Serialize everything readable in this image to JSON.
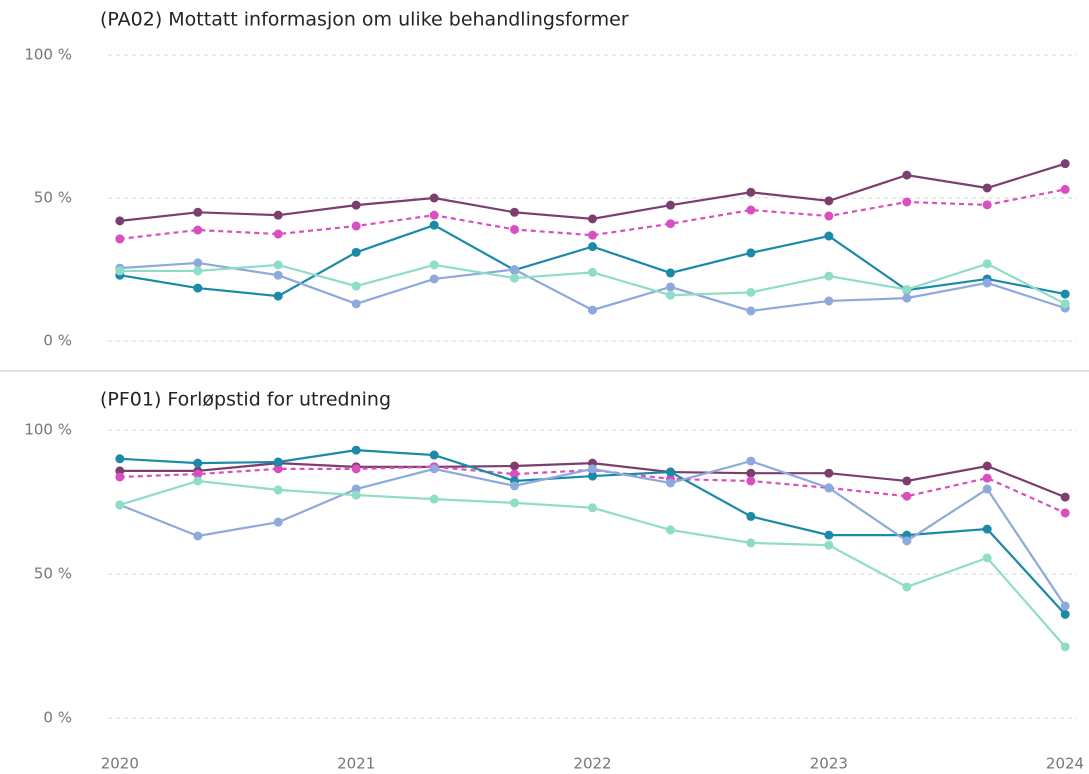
{
  "chart_data": [
    {
      "type": "line",
      "title": "(PA02) Mottatt informasjon om ulike behandlingsformer",
      "x": [
        2020,
        2020.33,
        2020.67,
        2021,
        2021.33,
        2021.67,
        2022,
        2022.33,
        2022.67,
        2023,
        2023.33,
        2023.67,
        2024
      ],
      "xlim": [
        2019.95,
        2024.05
      ],
      "ylim": [
        0,
        100
      ],
      "yticks": [
        {
          "value": 0,
          "label": "0 %"
        },
        {
          "value": 50,
          "label": "50 %"
        },
        {
          "value": 100,
          "label": "100 %"
        }
      ],
      "grid": true,
      "series": [
        {
          "color": "#7b3f6e",
          "line_style": "solid",
          "values": [
            42,
            45,
            44,
            47.5,
            50,
            45,
            42.7,
            47.5,
            52,
            49,
            58,
            53.5,
            62
          ]
        },
        {
          "color": "#d94fbf",
          "line_style": "dashed",
          "values": [
            35.7,
            38.8,
            37.4,
            40.2,
            44,
            39,
            37,
            41,
            45.8,
            43.7,
            48.6,
            47.6,
            53
          ]
        },
        {
          "color": "#1a8aa8",
          "line_style": "solid",
          "values": [
            23,
            18.5,
            15.7,
            31,
            40.5,
            24.8,
            33,
            23.8,
            30.8,
            36.7,
            17.8,
            21.7,
            16.4
          ]
        },
        {
          "color": "#8ea9dc",
          "line_style": "solid",
          "values": [
            25.5,
            27.3,
            23,
            13,
            21.7,
            25,
            10.8,
            18.9,
            10.5,
            14,
            15,
            20.3,
            11.5
          ]
        },
        {
          "color": "#8fdcc8",
          "line_style": "solid",
          "values": [
            24.5,
            24.5,
            26.6,
            19.2,
            26.6,
            22,
            24,
            16,
            17,
            22.7,
            18,
            27,
            13
          ]
        }
      ]
    },
    {
      "type": "line",
      "title": "(PF01) Forløpstid for utredning",
      "x": [
        2020,
        2020.33,
        2020.67,
        2021,
        2021.33,
        2021.67,
        2022,
        2022.33,
        2022.67,
        2023,
        2023.33,
        2023.67,
        2024
      ],
      "xlim": [
        2019.95,
        2024.05
      ],
      "xticks": [
        2020,
        2021,
        2022,
        2023,
        2024
      ],
      "ylim": [
        0,
        100
      ],
      "yticks": [
        {
          "value": 0,
          "label": "0 %"
        },
        {
          "value": 50,
          "label": "50 %"
        },
        {
          "value": 100,
          "label": "100 %"
        }
      ],
      "grid": true,
      "series": [
        {
          "color": "#7b3f6e",
          "line_style": "solid",
          "values": [
            85.8,
            85.8,
            88.5,
            87.2,
            87.2,
            87.5,
            88.5,
            85.4,
            85,
            85,
            82.3,
            87.5,
            76.7
          ]
        },
        {
          "color": "#d94fbf",
          "line_style": "dashed",
          "values": [
            83.7,
            84.7,
            86.5,
            86.5,
            87.2,
            84.7,
            86.1,
            83,
            82.3,
            79.9,
            77,
            83.3,
            71.2
          ]
        },
        {
          "color": "#1a8aa8",
          "line_style": "solid",
          "values": [
            90,
            88.5,
            88.9,
            93,
            91.3,
            82.3,
            84,
            85.4,
            70,
            63.5,
            63.5,
            65.6,
            36
          ]
        },
        {
          "color": "#8ea9dc",
          "line_style": "solid",
          "values": [
            74,
            63.2,
            68,
            79.5,
            86.5,
            80.6,
            86.5,
            81.6,
            89.2,
            79.9,
            61.5,
            79.5,
            38.9
          ]
        },
        {
          "color": "#8fdcc8",
          "line_style": "solid",
          "values": [
            74,
            82.3,
            79.2,
            77.4,
            76,
            74.7,
            73,
            65.3,
            60.8,
            60,
            45.5,
            55.6,
            24.7
          ]
        }
      ]
    }
  ]
}
